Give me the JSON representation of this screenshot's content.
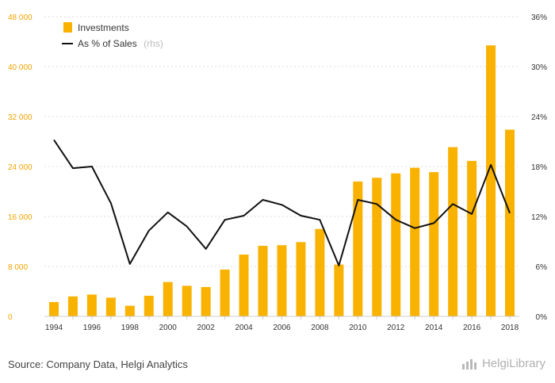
{
  "chart_data": {
    "type": "bar",
    "x": [
      1994,
      1995,
      1996,
      1997,
      1998,
      1999,
      2000,
      2001,
      2002,
      2003,
      2004,
      2005,
      2006,
      2007,
      2008,
      2009,
      2010,
      2011,
      2012,
      2013,
      2014,
      2015,
      2016,
      2017,
      2018
    ],
    "x_tick_labels": [
      "1994",
      "1996",
      "1998",
      "2000",
      "2002",
      "2004",
      "2006",
      "2008",
      "2010",
      "2012",
      "2014",
      "2016",
      "2018"
    ],
    "series": [
      {
        "name": "Investments",
        "type": "bar",
        "axis": "left",
        "color": "#f9b200",
        "values": [
          2300,
          3200,
          3500,
          3000,
          1700,
          3300,
          5500,
          4900,
          4700,
          7500,
          9900,
          11300,
          11400,
          11900,
          14000,
          8300,
          21600,
          22200,
          22900,
          23800,
          23100,
          27100,
          24900,
          43400,
          29900
        ]
      },
      {
        "name": "As % of Sales",
        "name_suffix": "(rhs)",
        "type": "line",
        "axis": "right",
        "color": "#111111",
        "values": [
          21.2,
          17.8,
          18.0,
          13.6,
          6.3,
          10.3,
          12.5,
          10.8,
          8.1,
          11.6,
          12.1,
          14.0,
          13.4,
          12.1,
          11.6,
          6.1,
          14.0,
          13.5,
          11.6,
          10.6,
          11.2,
          13.5,
          12.3,
          18.2,
          12.4
        ]
      }
    ],
    "y_left": {
      "ylim": [
        0,
        48000
      ],
      "ticks": [
        0,
        8000,
        16000,
        24000,
        32000,
        40000,
        48000
      ],
      "tick_labels": [
        "0",
        "8 000",
        "16 000",
        "24 000",
        "32 000",
        "40 000",
        "48 000"
      ],
      "color": "#f4a300"
    },
    "y_right": {
      "ylim": [
        0,
        36
      ],
      "ticks": [
        0,
        6,
        12,
        18,
        24,
        30,
        36
      ],
      "tick_labels": [
        "0%",
        "6%",
        "12%",
        "18%",
        "24%",
        "30%",
        "36%"
      ]
    },
    "title": "",
    "xlabel": "",
    "ylabel": "",
    "grid": true,
    "legend": "top-left"
  },
  "footer": {
    "source": "Source: Company Data, Helgi Analytics",
    "brand": "HelgiLibrary"
  }
}
